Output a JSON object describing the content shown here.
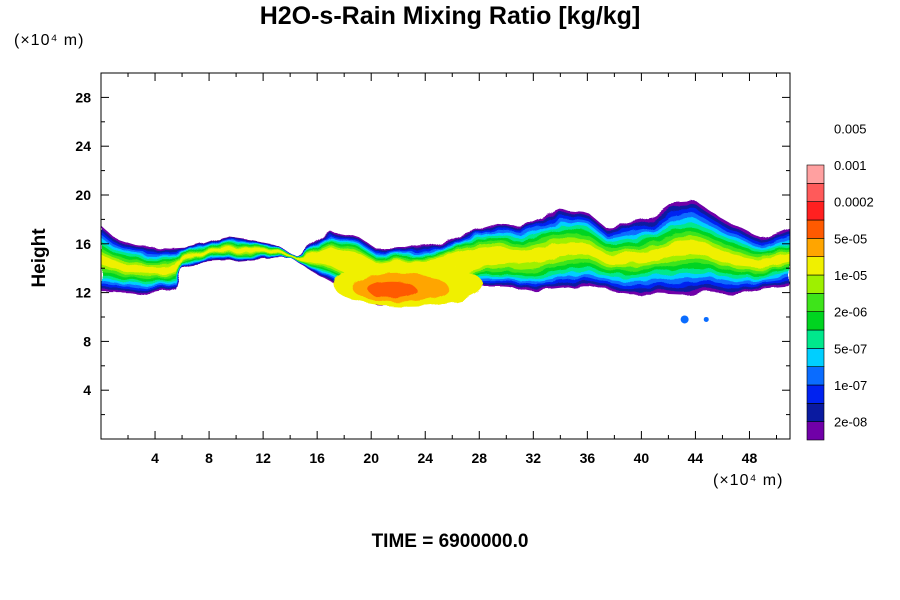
{
  "units": {
    "y": "(×10⁴ m)",
    "x": "(×10⁴ m)"
  },
  "time_label": "TIME = 6900000.0",
  "chart_data": {
    "type": "heatmap",
    "title": "H2O-s-Rain Mixing Ratio [kg/kg]",
    "xlabel": "",
    "ylabel": "Height",
    "xlim": [
      0,
      51
    ],
    "ylim": [
      0,
      30
    ],
    "x_ticks": [
      4,
      8,
      12,
      16,
      20,
      24,
      28,
      32,
      36,
      40,
      44,
      48
    ],
    "y_ticks": [
      4,
      8,
      12,
      16,
      20,
      24,
      28
    ],
    "colorbar": {
      "levels": [
        "2e-08",
        "1e-07",
        "5e-07",
        "2e-06",
        "1e-05",
        "5e-05",
        "0.0002",
        "0.001",
        "0.005"
      ],
      "colors": [
        "#7000a8",
        "#0a1aa0",
        "#0022f0",
        "#0a6cff",
        "#00cfff",
        "#00e88c",
        "#00d420",
        "#3ee41a",
        "#9ef000",
        "#f0f000",
        "#ffa500",
        "#ff5a00",
        "#ff2020",
        "#ff5a5a",
        "#ffa0a0"
      ]
    },
    "cloud_layer": {
      "x_range": [
        0,
        51
      ],
      "base_profile": [
        [
          0,
          12
        ],
        [
          2,
          12
        ],
        [
          3.5,
          11.8
        ],
        [
          5.5,
          12.2
        ],
        [
          6,
          14.2
        ],
        [
          8,
          14.5
        ],
        [
          10,
          14.6
        ],
        [
          12,
          14.8
        ],
        [
          14,
          14.9
        ],
        [
          16,
          13.5
        ],
        [
          18,
          12.3
        ],
        [
          19.5,
          11.6
        ],
        [
          20.5,
          10.9
        ],
        [
          22,
          11
        ],
        [
          23.5,
          11.3
        ],
        [
          25,
          11.6
        ],
        [
          26.5,
          12.2
        ],
        [
          28,
          12.5
        ],
        [
          30,
          12.5
        ],
        [
          32,
          12.1
        ],
        [
          34,
          12.3
        ],
        [
          36,
          12.6
        ],
        [
          38,
          12.1
        ],
        [
          39,
          11.9
        ],
        [
          41,
          11.9
        ],
        [
          43,
          11.8
        ],
        [
          45,
          12
        ],
        [
          47,
          11.8
        ],
        [
          49,
          12.3
        ],
        [
          51,
          12.5
        ]
      ],
      "top_profile": [
        [
          0,
          17.5
        ],
        [
          1,
          16.5
        ],
        [
          3,
          15.8
        ],
        [
          5,
          15.6
        ],
        [
          6.5,
          15.7
        ],
        [
          7.5,
          16
        ],
        [
          9,
          16.6
        ],
        [
          11,
          16.3
        ],
        [
          13,
          15.9
        ],
        [
          14.5,
          15
        ],
        [
          15.5,
          15.8
        ],
        [
          17,
          17
        ],
        [
          19,
          16.6
        ],
        [
          20.5,
          15.5
        ],
        [
          22,
          15.8
        ],
        [
          24,
          15.7
        ],
        [
          25.5,
          16.2
        ],
        [
          27,
          16.9
        ],
        [
          29,
          17.6
        ],
        [
          31,
          17.4
        ],
        [
          32.5,
          18.1
        ],
        [
          34,
          18.8
        ],
        [
          36,
          18.6
        ],
        [
          37.5,
          17.2
        ],
        [
          39,
          17.7
        ],
        [
          41,
          18.2
        ],
        [
          42.5,
          19.4
        ],
        [
          44,
          19.5
        ],
        [
          45.5,
          18.4
        ],
        [
          47,
          17.5
        ],
        [
          49,
          16.4
        ],
        [
          51,
          17.3
        ]
      ],
      "core_max": {
        "x": 22,
        "y": 12.4
      }
    }
  }
}
